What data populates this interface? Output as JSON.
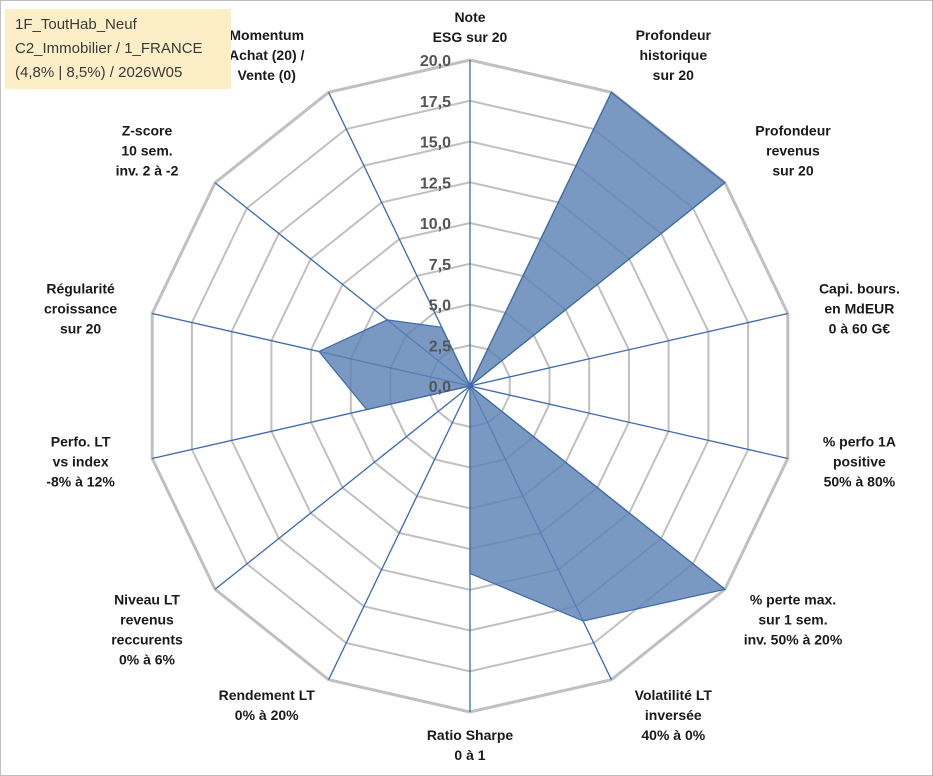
{
  "info_box": {
    "line1": "1F_ToutHab_Neuf",
    "line2": "C2_Immobilier / 1_FRANCE",
    "line3": "(4,8% | 8,5%) / 2026W05"
  },
  "colors": {
    "fill": "#5b82b4",
    "stroke": "#3d6aa6",
    "grid": "#c0c0c0",
    "spoke": "#3b68b0"
  },
  "chart_data": {
    "type": "radar",
    "title": "",
    "scale": {
      "min": 0,
      "max": 20,
      "step": 2.5
    },
    "tick_labels": [
      "0,0",
      "2,5",
      "5,0",
      "7,5",
      "10,0",
      "12,5",
      "15,0",
      "17,5",
      "20,0"
    ],
    "gridlines": true,
    "legend": "none",
    "axes": [
      {
        "label": [
          "Note",
          "ESG sur 20"
        ],
        "value": 0
      },
      {
        "label": [
          "Profondeur",
          "historique",
          "sur 20"
        ],
        "value": 20
      },
      {
        "label": [
          "Profondeur",
          "revenus",
          "sur 20"
        ],
        "value": 20
      },
      {
        "label": [
          "Capi. bours.",
          "en MdEUR",
          "0 à 60 G€"
        ],
        "value": 0
      },
      {
        "label": [
          "% perfo 1A",
          "positive",
          "50% à 80%"
        ],
        "value": 0
      },
      {
        "label": [
          "% perte max.",
          "sur 1 sem.",
          "inv. 50% à 20%"
        ],
        "value": 20
      },
      {
        "label": [
          "Volatilité LT",
          "inversée",
          "40% à 0%"
        ],
        "value": 16
      },
      {
        "label": [
          "Ratio Sharpe",
          "0 à 1"
        ],
        "value": 11.5
      },
      {
        "label": [
          "Rendement LT",
          "0% à 20%"
        ],
        "value": 0
      },
      {
        "label": [
          "Niveau LT",
          "revenus",
          "reccurents",
          "0% à 6%"
        ],
        "value": 0
      },
      {
        "label": [
          "Perfo. LT",
          "vs index",
          "-8% à 12%"
        ],
        "value": 6.5
      },
      {
        "label": [
          "Régularité",
          "croissance",
          "sur 20"
        ],
        "value": 9.5
      },
      {
        "label": [
          "Z-score",
          "10 sem.",
          "inv. 2 à -2"
        ],
        "value": 6.5
      },
      {
        "label": [
          "Momentum",
          "Achat (20) /",
          "Vente (0)"
        ],
        "value": 4
      }
    ]
  }
}
